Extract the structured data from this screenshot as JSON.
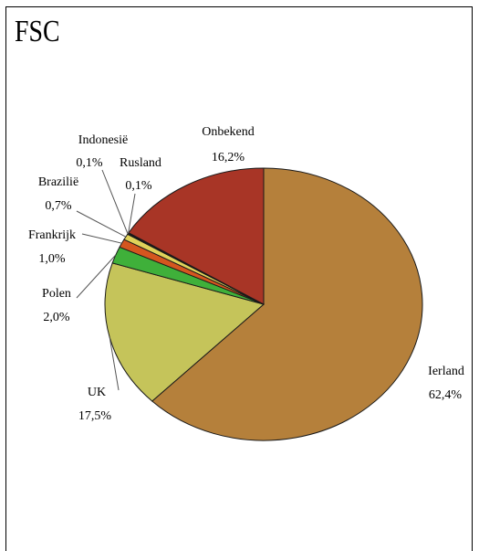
{
  "chart_data": {
    "type": "pie",
    "title": "FSC",
    "slices": [
      {
        "label": "Ierland",
        "value": "62,4%",
        "share": 62.4,
        "color": "#b5803b"
      },
      {
        "label": "UK",
        "value": "17,5%",
        "share": 17.5,
        "color": "#c5c45a"
      },
      {
        "label": "Polen",
        "value": "2,0%",
        "share": 2.0,
        "color": "#3fb03a"
      },
      {
        "label": "Frankrijk",
        "value": "1,0%",
        "share": 1.0,
        "color": "#d4561f"
      },
      {
        "label": "Brazilië",
        "value": "0,7%",
        "share": 0.7,
        "color": "#e0d25a"
      },
      {
        "label": "Indonesië",
        "value": "0,1%",
        "share": 0.1,
        "color": "#8a2c1c"
      },
      {
        "label": "Rusland",
        "value": "0,1%",
        "share": 0.1,
        "color": "#5a3a1e"
      },
      {
        "label": "Onbekend",
        "value": "16,2%",
        "share": 16.2,
        "color": "#a83526"
      }
    ]
  }
}
